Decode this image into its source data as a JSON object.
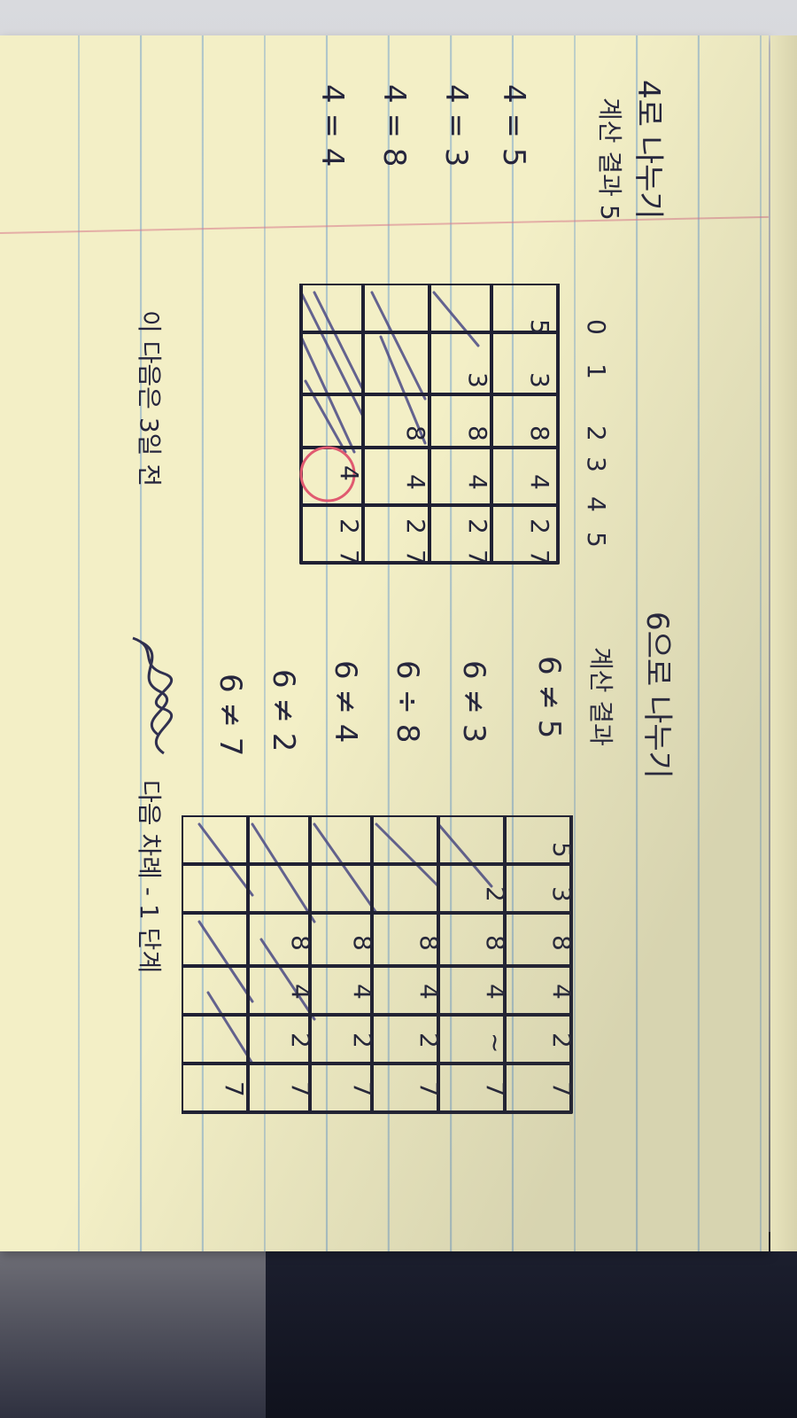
{
  "page_title": "4로 나누기",
  "left_section": {
    "header": "4로 나누기",
    "subheader": "계산 결과 5",
    "equations": [
      "4 = 5",
      "4 = 3",
      "4 = 8",
      "4 = 4"
    ]
  },
  "table_one": {
    "column_headers": [
      "0",
      "1",
      "2",
      "3",
      "4",
      "5"
    ],
    "rows": [
      [
        "5",
        "3",
        "8",
        "4",
        "2",
        "7"
      ],
      [
        "",
        "3",
        "8",
        "4",
        "2",
        "7"
      ],
      [
        "",
        "",
        "8",
        "4",
        "2",
        "7"
      ],
      [
        "",
        "",
        "",
        "4",
        "2",
        "7"
      ]
    ],
    "circled_value": "4"
  },
  "bottom_note": "이 다음은 3일 전",
  "right_section": {
    "header": "6으로 나누기",
    "subheader": "계산 결과",
    "equations": [
      "6 ≠ 5",
      "6 ≠ 3",
      "6 ÷ 8",
      "6 ≠ 4",
      "6 ≠ 2",
      "6 ≠ 7"
    ]
  },
  "table_two": {
    "rows": [
      [
        "5",
        "3",
        "8",
        "4",
        "2",
        "7"
      ],
      [
        "",
        "2",
        "8",
        "4",
        "~",
        "7"
      ],
      [
        "",
        "",
        "8",
        "4",
        "2",
        "7"
      ],
      [
        "",
        "",
        "8",
        "4",
        "2",
        "7"
      ],
      [
        "",
        "",
        "8",
        "4",
        "2",
        "7"
      ],
      [
        "",
        "",
        "",
        "",
        "",
        "7"
      ]
    ]
  },
  "right_footer": "다음 차례 - 1 단계"
}
